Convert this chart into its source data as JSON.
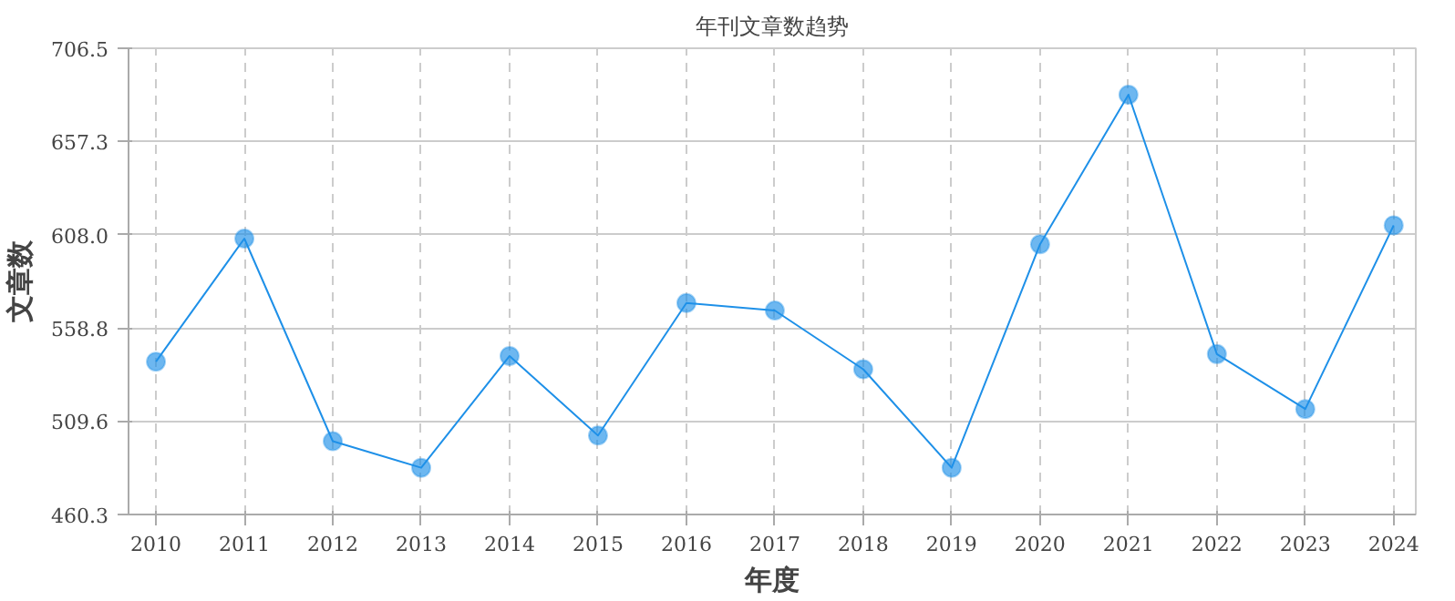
{
  "chart_data": {
    "type": "line",
    "title": "年刊文章数趋势",
    "xlabel": "年度",
    "ylabel": "文章数",
    "categories": [
      "2010",
      "2011",
      "2012",
      "2013",
      "2014",
      "2015",
      "2016",
      "2017",
      "2018",
      "2019",
      "2020",
      "2021",
      "2022",
      "2023",
      "2024"
    ],
    "series": [
      {
        "color": "#1e90e8",
        "values": [
          541,
          606,
          499,
          485,
          544,
          502,
          572,
          568,
          537,
          485,
          603,
          682,
          545,
          516,
          613
        ]
      }
    ],
    "ylim": [
      460.3,
      706.5
    ],
    "yticks": [
      460.3,
      509.6,
      558.8,
      {
        "value": 608,
        "label": "608.0"
      },
      657.3,
      706.5
    ],
    "grid": true,
    "marker": "circle",
    "line_style": "solid"
  }
}
